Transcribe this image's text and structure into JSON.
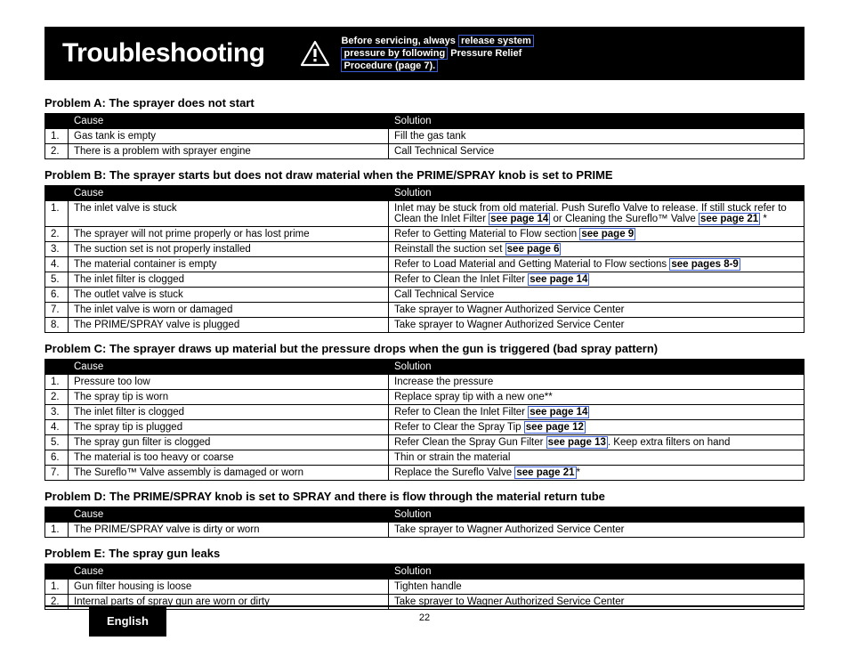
{
  "header": {
    "title": "Troubleshooting",
    "warning_line1": "Before servicing, always ",
    "warning_box1": "release system",
    "warning_line2_a": "pressure by following",
    "warning_line2_b": " Pressure Relief",
    "warning_box3": "Procedure (page 7)."
  },
  "tables": {
    "cause_header": "Cause",
    "solution_header": "Solution"
  },
  "problemA": {
    "title": "Problem A: The sprayer does not start",
    "rows": [
      {
        "n": "1.",
        "cause": "Gas tank is empty",
        "sol_text": "Fill the gas tank"
      },
      {
        "n": "2.",
        "cause": "There is a problem with sprayer engine",
        "sol_text": "Call Technical Service"
      }
    ]
  },
  "problemB": {
    "title": "Problem B: The sprayer starts but does not draw material when the PRIME/SPRAY knob is set to PRIME",
    "rows": [
      {
        "n": "1.",
        "cause": "The inlet valve is stuck",
        "sol_pre": "Inlet may be stuck from old material. Push Sureflo Valve to release. If still stuck refer to Clean the Inlet Filter ",
        "sol_link": "see page 14",
        "sol_mid": " or Cleaning the Sureflo™ Valve ",
        "sol_link2": "see page 21",
        "sol_post": " *"
      },
      {
        "n": "2.",
        "cause": "The sprayer will not prime properly or has lost prime",
        "sol_pre": "Refer to Getting Material to Flow section ",
        "sol_link": "see page 9",
        "sol_post": ""
      },
      {
        "n": "3.",
        "cause": "The suction set is not properly installed",
        "sol_pre": "Reinstall the suction set ",
        "sol_link": "see page 6",
        "sol_post": ""
      },
      {
        "n": "4.",
        "cause": "The material container is empty",
        "sol_pre": "Refer to Load Material and Getting Material to Flow sections ",
        "sol_link": "see pages 8-9",
        "sol_post": ""
      },
      {
        "n": "5.",
        "cause": "The inlet filter is clogged",
        "sol_pre": "Refer to Clean the Inlet Filter ",
        "sol_link": "see page 14",
        "sol_post": ""
      },
      {
        "n": "6.",
        "cause": "The outlet valve is stuck",
        "sol_pre": "Call Technical Service",
        "sol_link": "",
        "sol_post": ""
      },
      {
        "n": "7.",
        "cause": "The inlet valve is worn or damaged",
        "sol_pre": "Take sprayer to Wagner Authorized Service Center",
        "sol_link": "",
        "sol_post": ""
      },
      {
        "n": "8.",
        "cause": "The PRIME/SPRAY valve is plugged",
        "sol_pre": "Take sprayer to Wagner Authorized Service Center",
        "sol_link": "",
        "sol_post": ""
      }
    ]
  },
  "problemC": {
    "title": "Problem C: The sprayer draws up material but the pressure drops when the gun is triggered (bad spray pattern)",
    "rows": [
      {
        "n": "1.",
        "cause": "Pressure too low",
        "sol_pre": "Increase the pressure",
        "sol_link": "",
        "sol_post": ""
      },
      {
        "n": "2.",
        "cause": "The spray tip is worn",
        "sol_pre": "Replace spray tip with a new one**",
        "sol_link": "",
        "sol_post": ""
      },
      {
        "n": "3.",
        "cause": "The inlet filter is clogged",
        "sol_pre": "Refer to Clean the Inlet Filter ",
        "sol_link": "see page 14",
        "sol_post": ""
      },
      {
        "n": "4.",
        "cause": "The spray tip is plugged",
        "sol_pre": "Refer to Clear the Spray Tip ",
        "sol_link": "see page 12",
        "sol_post": ""
      },
      {
        "n": "5.",
        "cause": "The spray gun filter is clogged",
        "sol_pre": "Refer Clean the Spray Gun Filter ",
        "sol_link": "see page 13",
        "sol_post": ". Keep extra filters on hand"
      },
      {
        "n": "6.",
        "cause": "The material is too heavy or coarse",
        "sol_pre": "Thin or strain the material",
        "sol_link": "",
        "sol_post": ""
      },
      {
        "n": "7.",
        "cause": "The Sureflo™ Valve assembly is damaged or worn",
        "sol_pre": "Replace the Sureflo Valve ",
        "sol_link": "see page 21",
        "sol_post": "*"
      }
    ]
  },
  "problemD": {
    "title": "Problem D: The PRIME/SPRAY knob is set to SPRAY and there is flow through the material return tube",
    "rows": [
      {
        "n": "1.",
        "cause": "The PRIME/SPRAY valve is dirty or worn",
        "sol_pre": "Take sprayer to Wagner Authorized Service Center",
        "sol_link": "",
        "sol_post": ""
      }
    ]
  },
  "problemE": {
    "title": "Problem E: The spray gun leaks",
    "rows": [
      {
        "n": "1.",
        "cause": "Gun filter housing is loose",
        "sol_pre": "Tighten handle",
        "sol_link": "",
        "sol_post": ""
      },
      {
        "n": "2.",
        "cause": "Internal parts of spray gun are worn or dirty",
        "sol_pre": "Take sprayer to Wagner Authorized Service Center",
        "sol_link": "",
        "sol_post": ""
      }
    ]
  },
  "footer": {
    "tab": "English",
    "page": "22"
  }
}
